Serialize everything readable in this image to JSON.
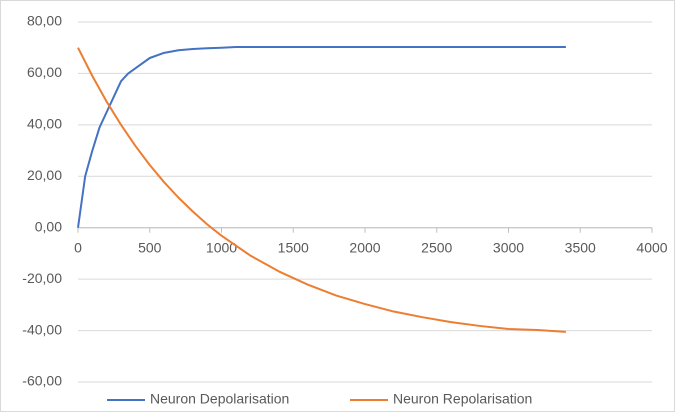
{
  "chart_data": {
    "type": "line",
    "xlim": [
      0,
      4000
    ],
    "xticks": [
      0,
      500,
      1000,
      1500,
      2000,
      2500,
      3000,
      3500,
      4000
    ],
    "ylim": [
      -60,
      80
    ],
    "yticks": [
      {
        "value": -60,
        "label": "-60,00"
      },
      {
        "value": -40,
        "label": "-40,00"
      },
      {
        "value": -20,
        "label": "-20,00"
      },
      {
        "value": 0,
        "label": "0,00"
      },
      {
        "value": 20,
        "label": "20,00"
      },
      {
        "value": 40,
        "label": "40,00"
      },
      {
        "value": 60,
        "label": "60,00"
      },
      {
        "value": 80,
        "label": "80,00"
      }
    ],
    "grid": true,
    "legend": "bottom",
    "series": [
      {
        "name": "Neuron Depolarisation",
        "color": "#4472c4",
        "x": [
          0,
          50,
          100,
          150,
          200,
          250,
          300,
          350,
          400,
          500,
          600,
          700,
          800,
          900,
          1000,
          1100,
          3400
        ],
        "values": [
          0,
          20,
          30,
          39,
          45,
          51,
          57,
          60,
          62,
          66,
          68,
          69,
          69.5,
          69.8,
          70,
          70.3,
          70.3
        ]
      },
      {
        "name": "Neuron Repolarisation",
        "color": "#ed7d31",
        "x": [
          0,
          100,
          200,
          300,
          400,
          500,
          600,
          700,
          800,
          900,
          1000,
          1200,
          1400,
          1600,
          1800,
          2000,
          2200,
          2400,
          2600,
          2800,
          3000,
          3200,
          3400
        ],
        "values": [
          70,
          59,
          49,
          40,
          31.8,
          24.4,
          17.7,
          11.7,
          6.3,
          1.3,
          -3.1,
          -10.8,
          -17,
          -22.1,
          -26.4,
          -29.7,
          -32.6,
          -34.8,
          -36.7,
          -38.2,
          -39.4,
          -39.8,
          -40.5
        ]
      }
    ]
  }
}
